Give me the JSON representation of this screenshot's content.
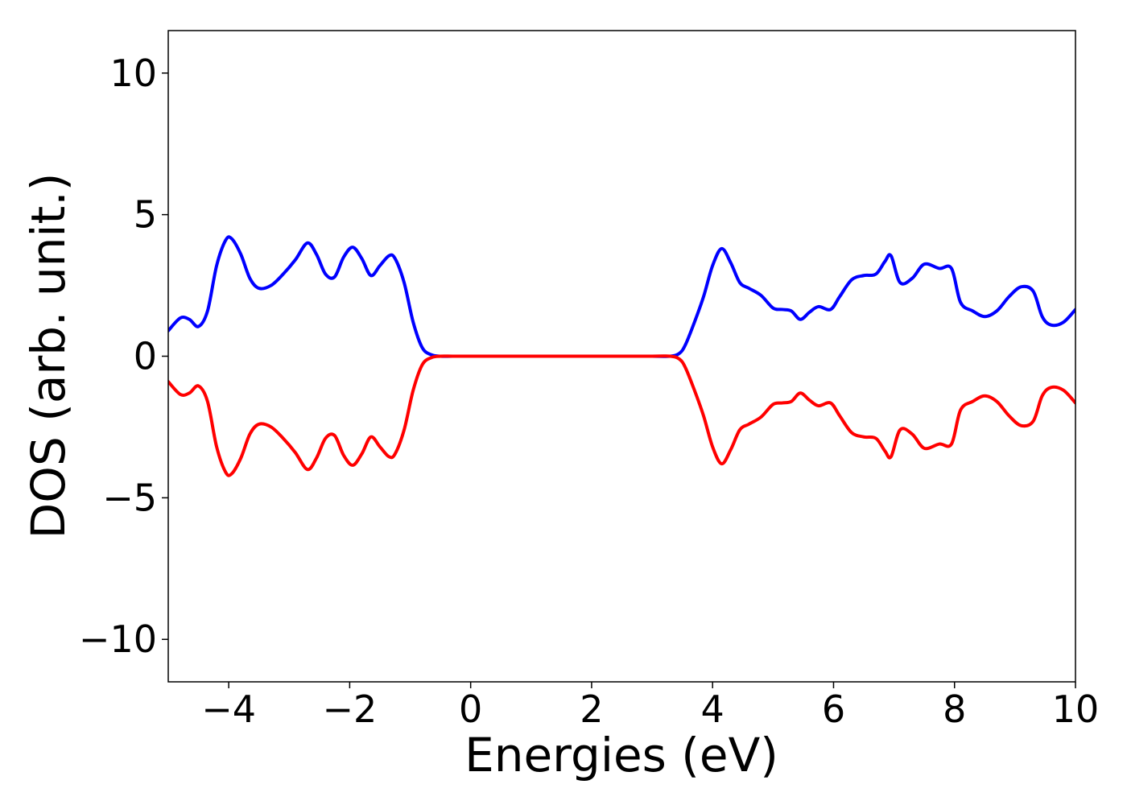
{
  "chart_data": {
    "type": "line",
    "title": "",
    "xlabel": "Energies (eV)",
    "ylabel": "DOS (arb. unit.)",
    "xlim": [
      -5,
      10
    ],
    "ylim": [
      -11.5,
      11.5
    ],
    "xticks": [
      -4,
      -2,
      0,
      2,
      4,
      6,
      8,
      10
    ],
    "yticks": [
      -10,
      -5,
      0,
      5,
      10
    ],
    "xtick_labels": [
      "−4",
      "−2",
      "0",
      "2",
      "4",
      "6",
      "8",
      "10"
    ],
    "ytick_labels": [
      "−10",
      "−5",
      "0",
      "5",
      "10"
    ],
    "grid": false,
    "legend": "none",
    "series": [
      {
        "color": "#0000ff",
        "x": [
          -5.0,
          -4.8,
          -4.65,
          -4.5,
          -4.35,
          -4.2,
          -4.05,
          -3.95,
          -3.8,
          -3.65,
          -3.5,
          -3.3,
          -3.1,
          -2.9,
          -2.7,
          -2.55,
          -2.4,
          -2.25,
          -2.1,
          -1.95,
          -1.8,
          -1.65,
          -1.5,
          -1.35,
          -1.25,
          -1.1,
          -0.95,
          -0.8,
          -0.65,
          -0.5,
          -0.3,
          0.0,
          1.0,
          2.0,
          3.0,
          3.3,
          3.45,
          3.55,
          3.7,
          3.85,
          4.0,
          4.15,
          4.3,
          4.45,
          4.6,
          4.8,
          5.0,
          5.15,
          5.3,
          5.45,
          5.6,
          5.75,
          5.95,
          6.1,
          6.3,
          6.5,
          6.7,
          6.85,
          6.95,
          7.1,
          7.3,
          7.5,
          7.75,
          7.95,
          8.1,
          8.3,
          8.5,
          8.7,
          8.9,
          9.1,
          9.3,
          9.45,
          9.6,
          9.8,
          10.0
        ],
        "y": [
          0.9,
          1.35,
          1.3,
          1.05,
          1.6,
          3.2,
          4.1,
          4.15,
          3.6,
          2.75,
          2.4,
          2.5,
          2.9,
          3.4,
          4.0,
          3.6,
          2.9,
          2.8,
          3.5,
          3.85,
          3.45,
          2.85,
          3.2,
          3.55,
          3.45,
          2.6,
          1.2,
          0.3,
          0.05,
          0.0,
          0.0,
          0.0,
          0.0,
          0.0,
          0.0,
          0.0,
          0.1,
          0.4,
          1.2,
          2.1,
          3.2,
          3.8,
          3.3,
          2.6,
          2.4,
          2.15,
          1.7,
          1.65,
          1.6,
          1.3,
          1.55,
          1.75,
          1.65,
          2.1,
          2.7,
          2.85,
          2.9,
          3.35,
          3.55,
          2.6,
          2.75,
          3.25,
          3.1,
          3.1,
          1.9,
          1.6,
          1.4,
          1.6,
          2.1,
          2.45,
          2.3,
          1.4,
          1.1,
          1.2,
          1.65
        ]
      },
      {
        "color": "#ff0000",
        "x": [
          -5.0,
          -4.8,
          -4.65,
          -4.5,
          -4.35,
          -4.2,
          -4.05,
          -3.95,
          -3.8,
          -3.65,
          -3.5,
          -3.3,
          -3.1,
          -2.9,
          -2.7,
          -2.55,
          -2.4,
          -2.25,
          -2.1,
          -1.95,
          -1.8,
          -1.65,
          -1.5,
          -1.35,
          -1.25,
          -1.1,
          -0.95,
          -0.8,
          -0.65,
          -0.5,
          -0.3,
          0.0,
          1.0,
          2.0,
          3.0,
          3.3,
          3.45,
          3.55,
          3.7,
          3.85,
          4.0,
          4.15,
          4.3,
          4.45,
          4.6,
          4.8,
          5.0,
          5.15,
          5.3,
          5.45,
          5.6,
          5.75,
          5.95,
          6.1,
          6.3,
          6.5,
          6.7,
          6.85,
          6.95,
          7.1,
          7.3,
          7.5,
          7.75,
          7.95,
          8.1,
          8.3,
          8.5,
          8.7,
          8.9,
          9.1,
          9.3,
          9.45,
          9.6,
          9.8,
          10.0
        ],
        "y": [
          -0.9,
          -1.35,
          -1.3,
          -1.05,
          -1.6,
          -3.2,
          -4.1,
          -4.15,
          -3.6,
          -2.75,
          -2.4,
          -2.5,
          -2.9,
          -3.4,
          -4.0,
          -3.6,
          -2.9,
          -2.8,
          -3.5,
          -3.85,
          -3.45,
          -2.85,
          -3.2,
          -3.55,
          -3.45,
          -2.6,
          -1.2,
          -0.3,
          -0.05,
          0.0,
          0.0,
          0.0,
          0.0,
          0.0,
          0.0,
          0.0,
          -0.1,
          -0.4,
          -1.2,
          -2.1,
          -3.2,
          -3.8,
          -3.3,
          -2.6,
          -2.4,
          -2.15,
          -1.7,
          -1.65,
          -1.6,
          -1.3,
          -1.55,
          -1.75,
          -1.65,
          -2.1,
          -2.7,
          -2.85,
          -2.9,
          -3.35,
          -3.55,
          -2.6,
          -2.75,
          -3.25,
          -3.1,
          -3.1,
          -1.9,
          -1.6,
          -1.4,
          -1.6,
          -2.1,
          -2.45,
          -2.3,
          -1.4,
          -1.1,
          -1.2,
          -1.65
        ]
      }
    ]
  }
}
